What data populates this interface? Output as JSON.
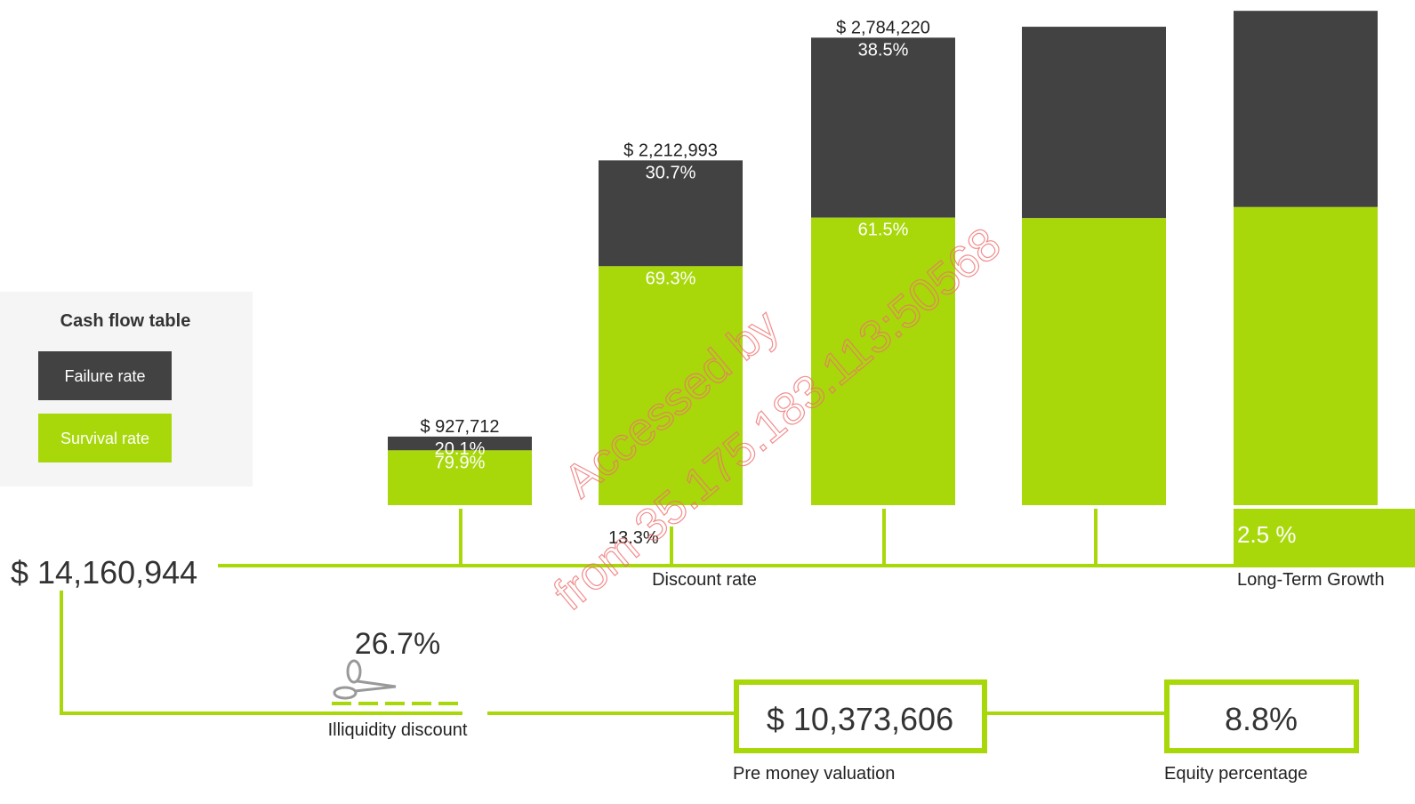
{
  "legend": {
    "title": "Cash flow table",
    "failure": "Failure rate",
    "survival": "Survival rate"
  },
  "bars": [
    {
      "cash_flow": 927712,
      "cash_flow_label": "$ 927,712",
      "failure_rate": 20.1,
      "failure_label": "20.1%",
      "survival_rate": 79.9,
      "survival_label": "79.9%"
    },
    {
      "cash_flow": 2212993,
      "cash_flow_label": "$ 2,212,993",
      "failure_rate": 30.7,
      "failure_label": "30.7%",
      "survival_rate": 69.3,
      "survival_label": "69.3%"
    },
    {
      "cash_flow": 2784220,
      "cash_flow_label": "$ 2,784,220",
      "failure_rate": 38.5,
      "failure_label": "38.5%",
      "survival_rate": 61.5,
      "survival_label": "61.5%"
    },
    {
      "cash_flow": 2835000,
      "failure_rate": 40,
      "survival_rate": 60
    },
    {
      "cash_flow": 2909000,
      "failure_rate": 39.7,
      "survival_rate": 60.3
    }
  ],
  "discount": {
    "value": "13.3%",
    "label": "Discount rate"
  },
  "growth": {
    "value": "2.5 %",
    "label": "Long-Term Growth"
  },
  "total": "$ 14,160,944",
  "illiquidity": {
    "value": "26.7%",
    "label": "Illiquidity discount"
  },
  "pre_money": {
    "value": "$ 10,373,606",
    "label": "Pre money valuation"
  },
  "equity": {
    "value": "8.8%",
    "label": "Equity percentage"
  },
  "watermark": [
    "Accessed by",
    "from 35.175.183.113:50568"
  ]
}
